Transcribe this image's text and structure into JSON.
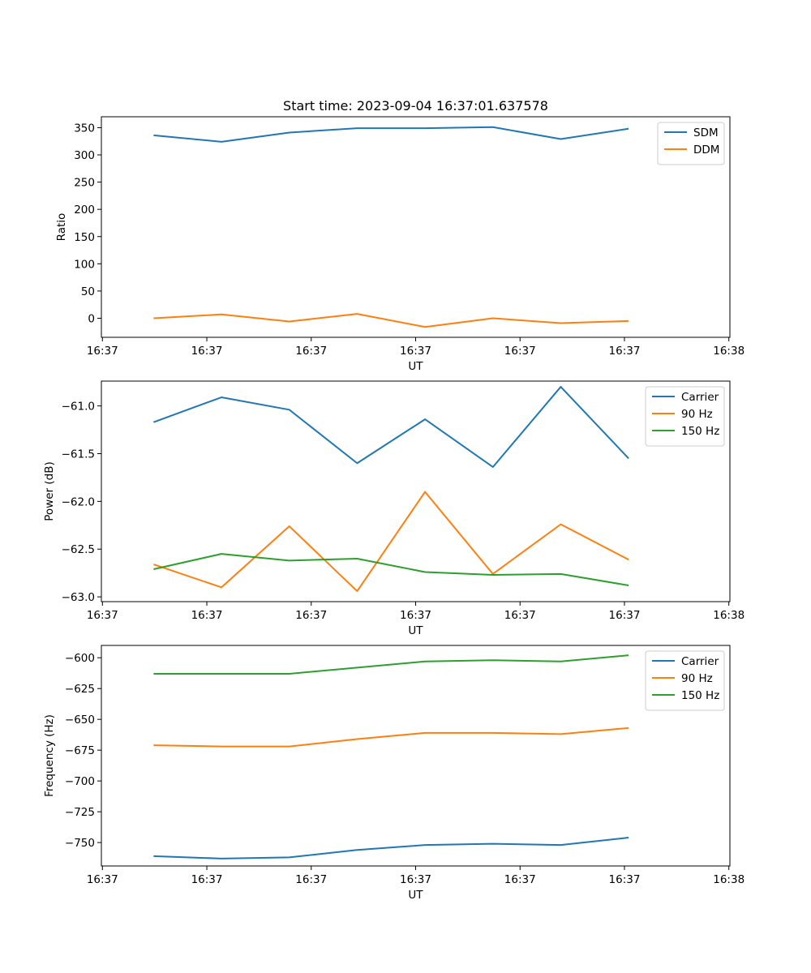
{
  "chart_data": [
    {
      "type": "line",
      "title": "Start time: 2023-09-04 16:37:01.637578",
      "xlabel": "UT",
      "ylabel": "Ratio",
      "x_tick_labels": [
        "16:37",
        "16:37",
        "16:37",
        "16:37",
        "16:37",
        "16:37",
        "16:38"
      ],
      "x_ticks": [
        0,
        1,
        2,
        3,
        4,
        5,
        6
      ],
      "xlim": [
        -0.01,
        6.01
      ],
      "x": [
        0.49,
        1.14,
        1.79,
        2.44,
        3.09,
        3.74,
        4.39,
        5.04
      ],
      "ylim": [
        -35,
        370
      ],
      "y_ticks": [
        0,
        50,
        100,
        150,
        200,
        250,
        300,
        350
      ],
      "legend_loc": "upper right",
      "series": [
        {
          "name": "SDM",
          "color": "#1f77b4",
          "values": [
            336,
            324,
            341,
            349,
            349,
            351,
            329,
            348
          ]
        },
        {
          "name": "DDM",
          "color": "#ff7f0e",
          "values": [
            0,
            7,
            -6,
            8,
            -16,
            0,
            -9,
            -5
          ]
        }
      ]
    },
    {
      "type": "line",
      "title": "",
      "xlabel": "UT",
      "ylabel": "Power (dB)",
      "x_tick_labels": [
        "16:37",
        "16:37",
        "16:37",
        "16:37",
        "16:37",
        "16:37",
        "16:38"
      ],
      "x_ticks": [
        0,
        1,
        2,
        3,
        4,
        5,
        6
      ],
      "xlim": [
        -0.01,
        6.01
      ],
      "x": [
        0.49,
        1.14,
        1.79,
        2.44,
        3.09,
        3.74,
        4.39,
        5.04
      ],
      "ylim": [
        -63.05,
        -60.74
      ],
      "y_ticks": [
        -63.0,
        -62.5,
        -62.0,
        -61.5,
        -61.0
      ],
      "y_tick_labels": [
        "−63.0",
        "−62.5",
        "−62.0",
        "−61.5",
        "−61.0"
      ],
      "legend_loc": "upper right",
      "series": [
        {
          "name": "Carrier",
          "color": "#1f77b4",
          "values": [
            -61.17,
            -60.91,
            -61.04,
            -61.6,
            -61.14,
            -61.64,
            -60.8,
            -61.55
          ]
        },
        {
          "name": "90 Hz",
          "color": "#ff7f0e",
          "values": [
            -62.66,
            -62.9,
            -62.26,
            -62.94,
            -61.9,
            -62.76,
            -62.24,
            -62.61
          ]
        },
        {
          "name": "150 Hz",
          "color": "#2ca02c",
          "values": [
            -62.71,
            -62.55,
            -62.62,
            -62.6,
            -62.74,
            -62.77,
            -62.76,
            -62.88
          ]
        }
      ]
    },
    {
      "type": "line",
      "title": "",
      "xlabel": "UT",
      "ylabel": "Frequency (Hz)",
      "x_tick_labels": [
        "16:37",
        "16:37",
        "16:37",
        "16:37",
        "16:37",
        "16:37",
        "16:38"
      ],
      "x_ticks": [
        0,
        1,
        2,
        3,
        4,
        5,
        6
      ],
      "xlim": [
        -0.01,
        6.01
      ],
      "x": [
        0.49,
        1.14,
        1.79,
        2.44,
        3.09,
        3.74,
        4.39,
        5.04
      ],
      "ylim": [
        -769,
        -590
      ],
      "y_ticks": [
        -750,
        -725,
        -700,
        -675,
        -650,
        -625,
        -600
      ],
      "y_tick_labels": [
        "−750",
        "−725",
        "−700",
        "−675",
        "−650",
        "−625",
        "−600"
      ],
      "legend_loc": "upper right",
      "series": [
        {
          "name": "Carrier",
          "color": "#1f77b4",
          "values": [
            -761,
            -763,
            -762,
            -756,
            -752,
            -751,
            -752,
            -746
          ]
        },
        {
          "name": "90 Hz",
          "color": "#ff7f0e",
          "values": [
            -671,
            -672,
            -672,
            -666,
            -661,
            -661,
            -662,
            -657
          ]
        },
        {
          "name": "150 Hz",
          "color": "#2ca02c",
          "values": [
            -613,
            -613,
            -613,
            -608,
            -603,
            -602,
            -603,
            -598
          ]
        }
      ]
    }
  ]
}
